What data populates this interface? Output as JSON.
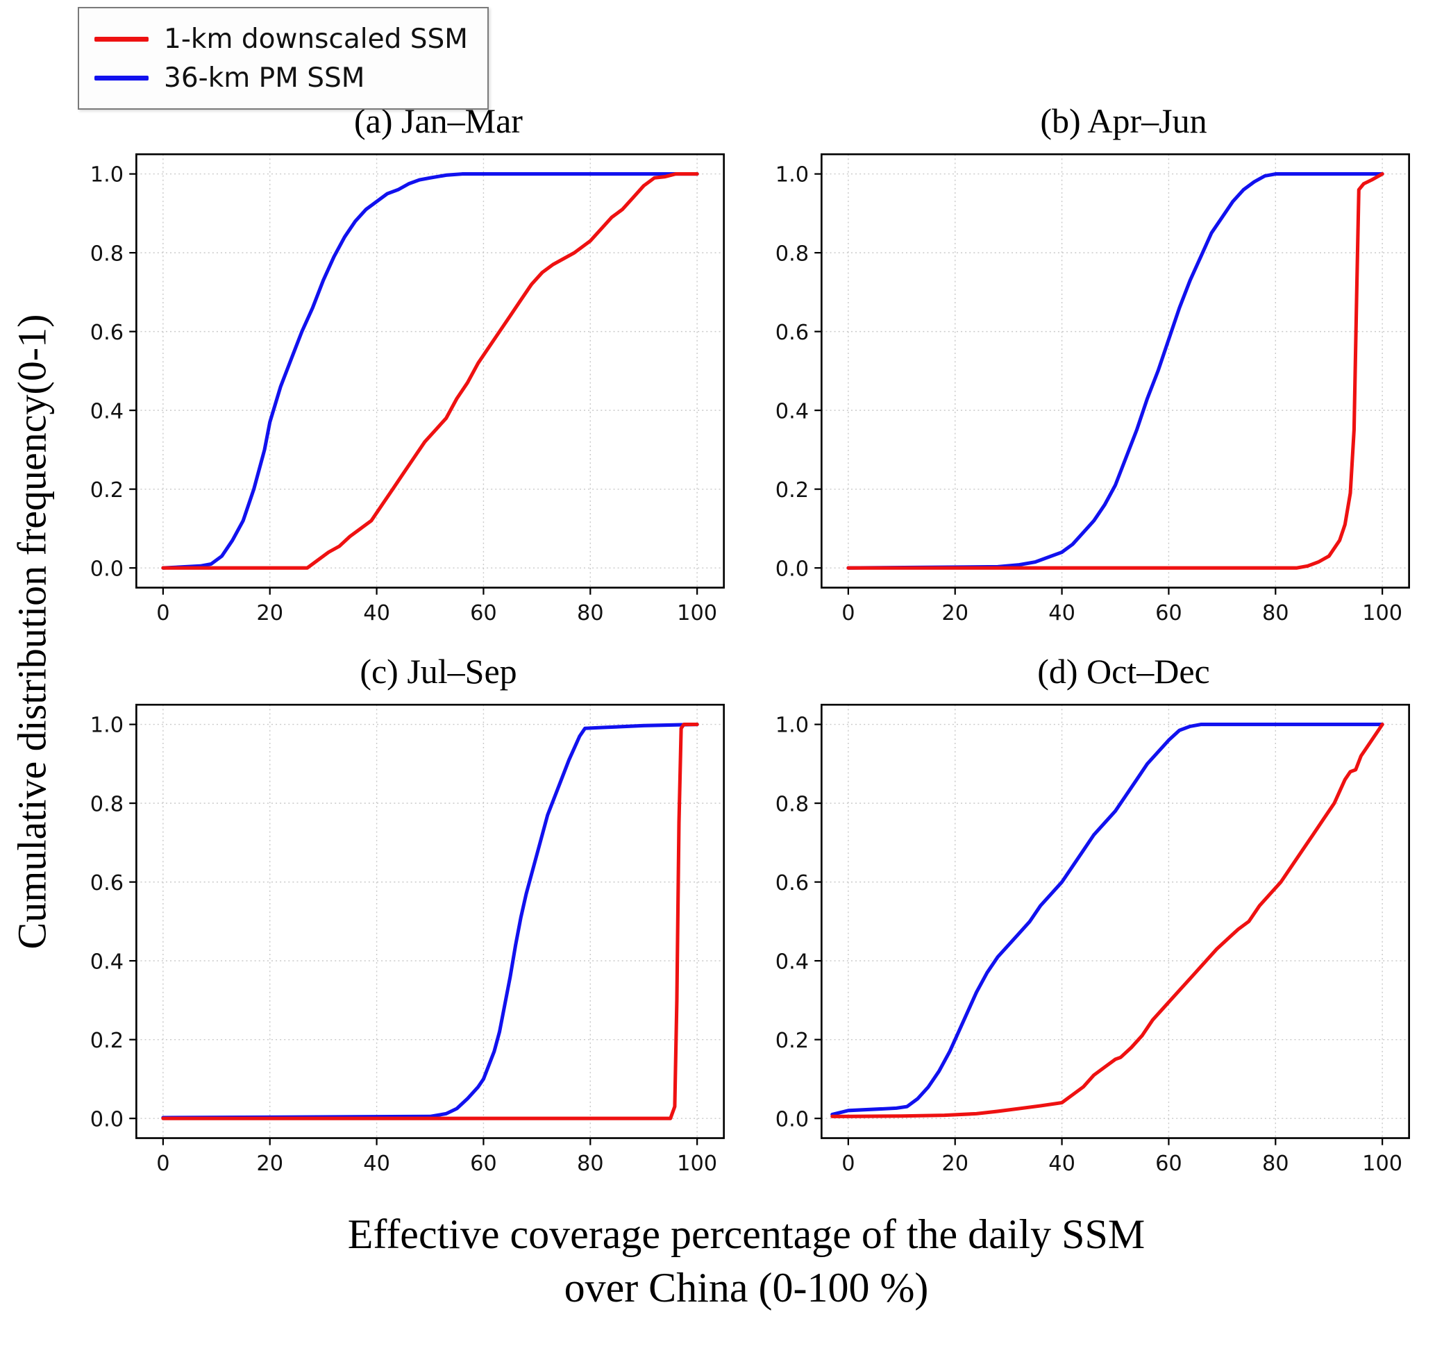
{
  "legend": {
    "items": [
      {
        "label": "1-km downscaled SSM",
        "color": "#ee1111"
      },
      {
        "label": "36-km PM SSM",
        "color": "#1111ee"
      }
    ]
  },
  "axes": {
    "ylabel": "Cumulative distribution frequency(0-1)",
    "xlabel_line1": "Effective coverage percentage of the daily SSM",
    "xlabel_line2": "over China (0-100 %)"
  },
  "chart_data": [
    {
      "id": "a",
      "type": "line",
      "title": "(a) Jan–Mar",
      "xlim": [
        -5,
        105
      ],
      "ylim": [
        -0.05,
        1.05
      ],
      "xticks": [
        0,
        20,
        40,
        60,
        80,
        100
      ],
      "yticks": [
        0.0,
        0.2,
        0.4,
        0.6,
        0.8,
        1.0
      ],
      "grid": true,
      "series": [
        {
          "name": "36-km PM SSM",
          "color": "#1111ee",
          "points": [
            [
              0,
              0
            ],
            [
              7,
              0.005
            ],
            [
              9,
              0.01
            ],
            [
              11,
              0.03
            ],
            [
              13,
              0.07
            ],
            [
              15,
              0.12
            ],
            [
              17,
              0.2
            ],
            [
              19,
              0.3
            ],
            [
              20,
              0.37
            ],
            [
              22,
              0.46
            ],
            [
              24,
              0.53
            ],
            [
              26,
              0.6
            ],
            [
              28,
              0.66
            ],
            [
              30,
              0.73
            ],
            [
              32,
              0.79
            ],
            [
              34,
              0.84
            ],
            [
              36,
              0.88
            ],
            [
              38,
              0.91
            ],
            [
              40,
              0.93
            ],
            [
              42,
              0.95
            ],
            [
              44,
              0.96
            ],
            [
              46,
              0.975
            ],
            [
              48,
              0.985
            ],
            [
              50,
              0.99
            ],
            [
              53,
              0.997
            ],
            [
              56,
              1.0
            ],
            [
              100,
              1.0
            ]
          ]
        },
        {
          "name": "1-km downscaled SSM",
          "color": "#ee1111",
          "points": [
            [
              0,
              0
            ],
            [
              27,
              0
            ],
            [
              29,
              0.02
            ],
            [
              31,
              0.04
            ],
            [
              33,
              0.055
            ],
            [
              35,
              0.08
            ],
            [
              37,
              0.1
            ],
            [
              39,
              0.12
            ],
            [
              41,
              0.16
            ],
            [
              43,
              0.2
            ],
            [
              45,
              0.24
            ],
            [
              47,
              0.28
            ],
            [
              49,
              0.32
            ],
            [
              51,
              0.35
            ],
            [
              53,
              0.38
            ],
            [
              55,
              0.43
            ],
            [
              57,
              0.47
            ],
            [
              59,
              0.52
            ],
            [
              61,
              0.56
            ],
            [
              63,
              0.6
            ],
            [
              65,
              0.64
            ],
            [
              67,
              0.68
            ],
            [
              69,
              0.72
            ],
            [
              71,
              0.75
            ],
            [
              73,
              0.77
            ],
            [
              75,
              0.785
            ],
            [
              77,
              0.8
            ],
            [
              79,
              0.82
            ],
            [
              80,
              0.83
            ],
            [
              82,
              0.86
            ],
            [
              84,
              0.89
            ],
            [
              86,
              0.91
            ],
            [
              88,
              0.94
            ],
            [
              90,
              0.97
            ],
            [
              92,
              0.99
            ],
            [
              94,
              0.993
            ],
            [
              96,
              1.0
            ],
            [
              100,
              1.0
            ]
          ]
        }
      ]
    },
    {
      "id": "b",
      "type": "line",
      "title": "(b) Apr–Jun",
      "xlim": [
        -5,
        105
      ],
      "ylim": [
        -0.05,
        1.05
      ],
      "xticks": [
        0,
        20,
        40,
        60,
        80,
        100
      ],
      "yticks": [
        0.0,
        0.2,
        0.4,
        0.6,
        0.8,
        1.0
      ],
      "grid": true,
      "series": [
        {
          "name": "36-km PM SSM",
          "color": "#1111ee",
          "points": [
            [
              0,
              0
            ],
            [
              28,
              0.003
            ],
            [
              32,
              0.008
            ],
            [
              35,
              0.015
            ],
            [
              38,
              0.03
            ],
            [
              40,
              0.04
            ],
            [
              42,
              0.06
            ],
            [
              44,
              0.09
            ],
            [
              46,
              0.12
            ],
            [
              48,
              0.16
            ],
            [
              50,
              0.21
            ],
            [
              52,
              0.28
            ],
            [
              54,
              0.35
            ],
            [
              56,
              0.43
            ],
            [
              58,
              0.5
            ],
            [
              60,
              0.58
            ],
            [
              62,
              0.66
            ],
            [
              64,
              0.73
            ],
            [
              66,
              0.79
            ],
            [
              68,
              0.85
            ],
            [
              70,
              0.89
            ],
            [
              72,
              0.93
            ],
            [
              74,
              0.96
            ],
            [
              76,
              0.98
            ],
            [
              78,
              0.995
            ],
            [
              80,
              1.0
            ],
            [
              100,
              1.0
            ]
          ]
        },
        {
          "name": "1-km downscaled SSM",
          "color": "#ee1111",
          "points": [
            [
              0,
              0
            ],
            [
              84,
              0
            ],
            [
              86,
              0.005
            ],
            [
              88,
              0.015
            ],
            [
              90,
              0.03
            ],
            [
              91,
              0.05
            ],
            [
              92,
              0.07
            ],
            [
              93,
              0.11
            ],
            [
              94,
              0.19
            ],
            [
              94.7,
              0.35
            ],
            [
              95.2,
              0.7
            ],
            [
              95.6,
              0.96
            ],
            [
              96.5,
              0.975
            ],
            [
              98,
              0.985
            ],
            [
              100,
              1.0
            ]
          ]
        }
      ]
    },
    {
      "id": "c",
      "type": "line",
      "title": "(c) Jul–Sep",
      "xlim": [
        -5,
        105
      ],
      "ylim": [
        -0.05,
        1.05
      ],
      "xticks": [
        0,
        20,
        40,
        60,
        80,
        100
      ],
      "yticks": [
        0.0,
        0.2,
        0.4,
        0.6,
        0.8,
        1.0
      ],
      "grid": true,
      "series": [
        {
          "name": "36-km PM SSM",
          "color": "#1111ee",
          "points": [
            [
              0,
              0.002
            ],
            [
              50,
              0.005
            ],
            [
              53,
              0.012
            ],
            [
              55,
              0.025
            ],
            [
              57,
              0.05
            ],
            [
              59,
              0.08
            ],
            [
              60,
              0.1
            ],
            [
              62,
              0.17
            ],
            [
              63,
              0.22
            ],
            [
              64,
              0.29
            ],
            [
              65,
              0.36
            ],
            [
              66,
              0.44
            ],
            [
              67,
              0.51
            ],
            [
              68,
              0.57
            ],
            [
              69,
              0.62
            ],
            [
              70,
              0.67
            ],
            [
              71,
              0.72
            ],
            [
              72,
              0.77
            ],
            [
              74,
              0.84
            ],
            [
              76,
              0.91
            ],
            [
              78,
              0.97
            ],
            [
              79,
              0.99
            ],
            [
              82,
              0.992
            ],
            [
              90,
              0.997
            ],
            [
              100,
              1.0
            ]
          ]
        },
        {
          "name": "1-km downscaled SSM",
          "color": "#ee1111",
          "points": [
            [
              0,
              0
            ],
            [
              95,
              0
            ],
            [
              95.8,
              0.03
            ],
            [
              96.2,
              0.3
            ],
            [
              96.6,
              0.75
            ],
            [
              97,
              0.99
            ],
            [
              97.5,
              1.0
            ],
            [
              100,
              1.0
            ]
          ]
        }
      ]
    },
    {
      "id": "d",
      "type": "line",
      "title": "(d) Oct–Dec",
      "xlim": [
        -5,
        105
      ],
      "ylim": [
        -0.05,
        1.05
      ],
      "xticks": [
        0,
        20,
        40,
        60,
        80,
        100
      ],
      "yticks": [
        0.0,
        0.2,
        0.4,
        0.6,
        0.8,
        1.0
      ],
      "grid": true,
      "series": [
        {
          "name": "36-km PM SSM",
          "color": "#1111ee",
          "points": [
            [
              -3,
              0.01
            ],
            [
              0,
              0.02
            ],
            [
              3,
              0.022
            ],
            [
              6,
              0.024
            ],
            [
              9,
              0.026
            ],
            [
              11,
              0.03
            ],
            [
              13,
              0.05
            ],
            [
              15,
              0.08
            ],
            [
              17,
              0.12
            ],
            [
              19,
              0.17
            ],
            [
              20,
              0.2
            ],
            [
              22,
              0.26
            ],
            [
              24,
              0.32
            ],
            [
              26,
              0.37
            ],
            [
              28,
              0.41
            ],
            [
              30,
              0.44
            ],
            [
              32,
              0.47
            ],
            [
              34,
              0.5
            ],
            [
              36,
              0.54
            ],
            [
              38,
              0.57
            ],
            [
              40,
              0.6
            ],
            [
              42,
              0.64
            ],
            [
              44,
              0.68
            ],
            [
              46,
              0.72
            ],
            [
              48,
              0.75
            ],
            [
              50,
              0.78
            ],
            [
              52,
              0.82
            ],
            [
              54,
              0.86
            ],
            [
              56,
              0.9
            ],
            [
              58,
              0.93
            ],
            [
              60,
              0.96
            ],
            [
              62,
              0.985
            ],
            [
              64,
              0.995
            ],
            [
              66,
              1.0
            ],
            [
              100,
              1.0
            ]
          ]
        },
        {
          "name": "1-km downscaled SSM",
          "color": "#ee1111",
          "points": [
            [
              -3,
              0.005
            ],
            [
              0,
              0.005
            ],
            [
              10,
              0.006
            ],
            [
              18,
              0.008
            ],
            [
              24,
              0.012
            ],
            [
              28,
              0.018
            ],
            [
              32,
              0.025
            ],
            [
              36,
              0.032
            ],
            [
              40,
              0.04
            ],
            [
              42,
              0.06
            ],
            [
              44,
              0.08
            ],
            [
              46,
              0.11
            ],
            [
              48,
              0.13
            ],
            [
              50,
              0.15
            ],
            [
              51,
              0.155
            ],
            [
              53,
              0.18
            ],
            [
              55,
              0.21
            ],
            [
              57,
              0.25
            ],
            [
              59,
              0.28
            ],
            [
              61,
              0.31
            ],
            [
              63,
              0.34
            ],
            [
              65,
              0.37
            ],
            [
              67,
              0.4
            ],
            [
              69,
              0.43
            ],
            [
              71,
              0.455
            ],
            [
              73,
              0.48
            ],
            [
              75,
              0.5
            ],
            [
              77,
              0.54
            ],
            [
              79,
              0.57
            ],
            [
              81,
              0.6
            ],
            [
              83,
              0.64
            ],
            [
              85,
              0.68
            ],
            [
              87,
              0.72
            ],
            [
              89,
              0.76
            ],
            [
              90,
              0.78
            ],
            [
              91,
              0.8
            ],
            [
              92,
              0.83
            ],
            [
              93,
              0.86
            ],
            [
              94,
              0.88
            ],
            [
              95,
              0.885
            ],
            [
              96,
              0.92
            ],
            [
              97,
              0.94
            ],
            [
              98,
              0.96
            ],
            [
              99,
              0.98
            ],
            [
              100,
              1.0
            ]
          ]
        }
      ]
    }
  ]
}
